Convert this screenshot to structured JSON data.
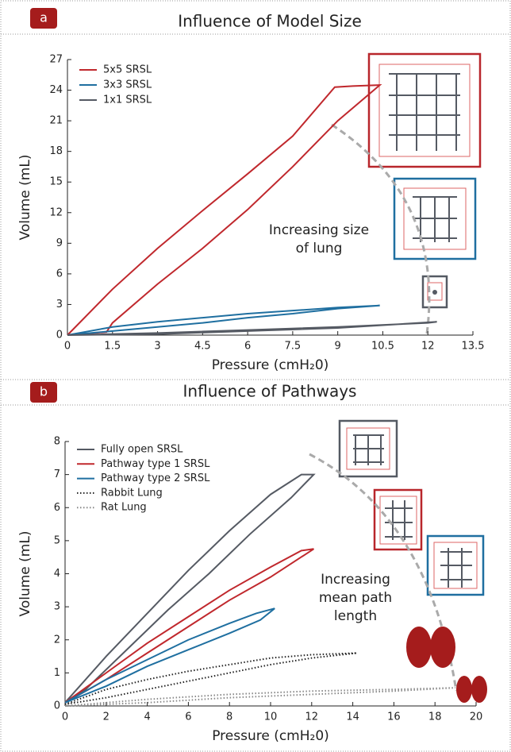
{
  "chart_data": [
    {
      "type": "line",
      "panel_label": "a",
      "title": "Influence of Model Size",
      "xlabel": "Pressure (cmH₂0)",
      "ylabel": "Volume (mL)",
      "annotation": [
        "Increasing size",
        "of lung"
      ],
      "xlim": [
        0,
        13.5
      ],
      "xticks": [
        0,
        1.5,
        3,
        4.5,
        6,
        7.5,
        9,
        10.5,
        12,
        13.5
      ],
      "ylim": [
        0,
        27
      ],
      "yticks": [
        0,
        3,
        6,
        9,
        12,
        15,
        18,
        21,
        24,
        27
      ],
      "legend": "upper left",
      "series": [
        {
          "name": "5x5 SRSL",
          "color": "#c0282d",
          "x": [
            0,
            1.5,
            3,
            4.5,
            6,
            7.5,
            8.9,
            9.5,
            10.4,
            9,
            7.5,
            6,
            4.5,
            3,
            1.5,
            1.3,
            0
          ],
          "values": [
            0,
            4.5,
            8.5,
            12.2,
            15.8,
            19.5,
            24.3,
            24.4,
            24.5,
            21,
            16.5,
            12.3,
            8.5,
            5,
            1.2,
            0.3,
            0
          ]
        },
        {
          "name": "3x3 SRSL",
          "color": "#1f6fa0",
          "x": [
            0,
            1.5,
            3,
            4.5,
            6,
            7.5,
            9,
            10.4,
            9,
            7.5,
            6,
            4.5,
            3,
            1.5,
            0
          ],
          "values": [
            0,
            0.8,
            1.3,
            1.7,
            2.1,
            2.4,
            2.7,
            2.9,
            2.6,
            2.1,
            1.7,
            1.2,
            0.8,
            0.4,
            0
          ]
        },
        {
          "name": "1x1 SRSL",
          "color": "#555a63",
          "x": [
            0,
            3,
            6,
            9,
            12,
            12.3,
            9,
            6,
            3,
            0
          ],
          "values": [
            0,
            0.2,
            0.5,
            0.8,
            1.2,
            1.3,
            0.7,
            0.4,
            0.1,
            0
          ]
        }
      ]
    },
    {
      "type": "line",
      "panel_label": "b",
      "title": "Influence of Pathways",
      "xlabel": "Pressure (cmH₂0)",
      "ylabel": "Volume (mL)",
      "annotation": [
        "Increasing",
        "mean path",
        "length"
      ],
      "xlim": [
        0,
        20
      ],
      "xticks": [
        0,
        2,
        4,
        6,
        8,
        10,
        12,
        14,
        16,
        18,
        20
      ],
      "ylim": [
        0,
        8
      ],
      "yticks": [
        0,
        1,
        2,
        3,
        4,
        5,
        6,
        7,
        8
      ],
      "legend": "upper left",
      "series": [
        {
          "name": "Fully open SRSL",
          "color": "#555a63",
          "x": [
            0,
            2,
            4,
            6,
            8,
            10,
            11.5,
            12.1,
            11,
            9,
            7,
            5,
            3,
            1,
            0
          ],
          "values": [
            0.1,
            1.5,
            2.8,
            4.1,
            5.3,
            6.4,
            7.0,
            7.0,
            6.3,
            5.2,
            4.0,
            2.9,
            1.7,
            0.5,
            0.1
          ]
        },
        {
          "name": "Pathway type 1 SRSL",
          "color": "#c0282d",
          "x": [
            0,
            2,
            4,
            6,
            8,
            10,
            11.5,
            12.1,
            10,
            8,
            6,
            4,
            2,
            0
          ],
          "values": [
            0.1,
            1.0,
            1.9,
            2.7,
            3.5,
            4.2,
            4.7,
            4.75,
            3.9,
            3.2,
            2.4,
            1.6,
            0.8,
            0.1
          ]
        },
        {
          "name": "Pathway type 2 SRSL",
          "color": "#1f6fa0",
          "x": [
            0,
            2,
            4,
            6,
            8,
            9.3,
            10.2,
            9.5,
            8,
            6,
            4,
            2,
            0
          ],
          "values": [
            0.1,
            0.8,
            1.4,
            2.0,
            2.5,
            2.8,
            2.95,
            2.6,
            2.2,
            1.7,
            1.2,
            0.6,
            0.1
          ]
        },
        {
          "name": "Rabbit Lung",
          "color": "#222222",
          "linestyle": "dotted",
          "x": [
            0,
            2,
            4,
            6,
            8,
            10,
            12,
            14.2,
            12,
            10,
            8,
            6,
            4,
            2,
            0
          ],
          "values": [
            0.05,
            0.5,
            0.8,
            1.05,
            1.25,
            1.45,
            1.55,
            1.6,
            1.45,
            1.25,
            1.0,
            0.75,
            0.5,
            0.25,
            0.05
          ]
        },
        {
          "name": "Rat Lung",
          "color": "#888888",
          "linestyle": "dotted",
          "x": [
            0,
            4,
            8,
            12,
            16,
            19,
            16,
            12,
            8,
            4,
            0
          ],
          "values": [
            0,
            0.2,
            0.35,
            0.45,
            0.5,
            0.55,
            0.45,
            0.35,
            0.25,
            0.1,
            0
          ]
        }
      ]
    }
  ]
}
